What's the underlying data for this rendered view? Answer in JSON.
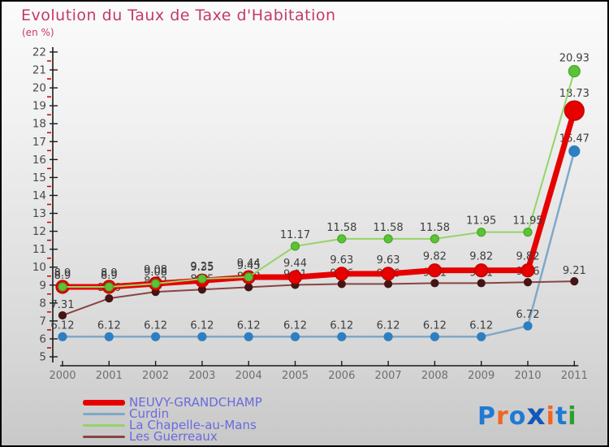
{
  "header": {
    "title": "Evolution du Taux de Taxe d'Habitation",
    "subtitle": "(en %)",
    "title_color": "#c43a63"
  },
  "chart_data": {
    "type": "line",
    "title": "Evolution du Taux de Taxe d'Habitation",
    "subtitle": "(en %)",
    "x": [
      2000,
      2001,
      2002,
      2003,
      2004,
      2005,
      2006,
      2007,
      2008,
      2009,
      2010,
      2011
    ],
    "ylim": [
      5,
      22
    ],
    "y_major_step": 1,
    "y_minor_step": 0.5,
    "grid": false,
    "legend_position": "bottom-left",
    "series": [
      {
        "name": "NEUVY-GRANDCHAMP",
        "color": "#e60000",
        "marker_color": "#e60000",
        "marker_stroke": "#bb0000",
        "line_width": 7,
        "marker_radius": 8,
        "last_marker_radius": 12,
        "label_offset": 13,
        "values": [
          8.9,
          8.9,
          9.08,
          9.25,
          9.44,
          9.44,
          9.63,
          9.63,
          9.82,
          9.82,
          9.82,
          18.73
        ]
      },
      {
        "name": "Curdin",
        "color": "#7fa8c9",
        "marker_color": "#2e7fc2",
        "marker_stroke": "#2e7fc2",
        "line_width": 2.5,
        "marker_radius": 5,
        "last_marker_radius": 6.5,
        "label_offset": 10,
        "values": [
          6.12,
          6.12,
          6.12,
          6.12,
          6.12,
          6.12,
          6.12,
          6.12,
          6.12,
          6.12,
          6.72,
          16.47
        ]
      },
      {
        "name": "La Chapelle-au-Mans",
        "color": "#94d468",
        "marker_color": "#5cc23a",
        "marker_stroke": "#46a81f",
        "line_width": 2,
        "marker_radius": 5,
        "last_marker_radius": 7,
        "label_offset": 10,
        "values": [
          8.9,
          8.9,
          9.08,
          9.35,
          9.45,
          11.17,
          11.58,
          11.58,
          11.58,
          11.95,
          11.95,
          20.93
        ]
      },
      {
        "name": "Les Guerreaux",
        "color": "#8a4444",
        "marker_color": "#451414",
        "marker_stroke": "#451414",
        "line_width": 2,
        "marker_radius": 4.5,
        "last_marker_radius": 4.5,
        "label_offset": 9,
        "values": [
          7.31,
          8.26,
          8.62,
          8.75,
          8.88,
          9.01,
          9.06,
          9.06,
          9.11,
          9.11,
          9.16,
          9.21
        ]
      }
    ],
    "label_color": "#3d3d3d",
    "axis_color": "#1a1a1a",
    "minor_tick_color": "#cc0000",
    "x_tick_label_color": "#6e6e6e",
    "y_tick_label_color": "#4a4a4a"
  },
  "logo": {
    "name": "Proxiti",
    "letters": [
      {
        "ch": "P",
        "color": "#1f7ad4",
        "big": false
      },
      {
        "ch": "r",
        "color": "#f26522",
        "big": false
      },
      {
        "ch": "o",
        "color": "#1f7ad4",
        "big": false
      },
      {
        "ch": "x",
        "color": "#1358b8",
        "big": true
      },
      {
        "ch": "i",
        "color": "#f26522",
        "big": false
      },
      {
        "ch": "t",
        "color": "#1f7ad4",
        "big": false
      },
      {
        "ch": "i",
        "color": "#2ca02c",
        "big": false
      }
    ]
  }
}
